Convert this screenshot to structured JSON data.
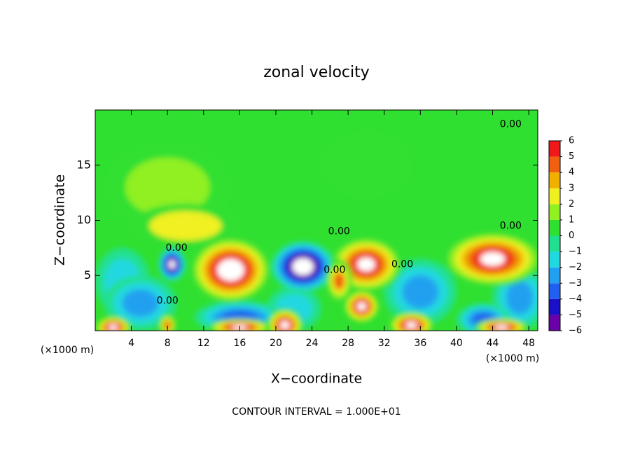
{
  "chart_data": {
    "type": "contour",
    "title": "zonal velocity",
    "xlabel": "X−coordinate",
    "ylabel": "Z−coordinate",
    "x_unit": "(×1000 m)",
    "footer": "CONTOUR INTERVAL = 1.000E+01",
    "xlim": [
      0,
      49
    ],
    "ylim": [
      0,
      20
    ],
    "xticks": [
      4,
      8,
      12,
      16,
      20,
      24,
      28,
      32,
      36,
      40,
      44,
      48
    ],
    "yticks": [
      5,
      10,
      15
    ],
    "background_value": 0.5,
    "colorbar_ticks": [
      {
        "value": -6,
        "label": "−6"
      },
      {
        "value": -5,
        "label": "−5"
      },
      {
        "value": -4,
        "label": "−4"
      },
      {
        "value": -3,
        "label": "−3"
      },
      {
        "value": -2,
        "label": "−2"
      },
      {
        "value": -1,
        "label": "−1"
      },
      0,
      1,
      2,
      3,
      4,
      5,
      6
    ],
    "colors": [
      "#6a00a8",
      "#1a10c8",
      "#2060f0",
      "#20a0f0",
      "#20d8e0",
      "#20e090",
      "#30e030",
      "#90f020",
      "#f0f020",
      "#f0b000",
      "#f06010",
      "#f01818"
    ],
    "out_of_range_color": "#ffffff",
    "field": [
      {
        "x": 8,
        "z": 13,
        "rx": 7,
        "rz": 4,
        "value": 1.5
      },
      {
        "x": 10,
        "z": 9.5,
        "rx": 6,
        "rz": 2,
        "value": 2
      },
      {
        "x": 30,
        "z": 15,
        "rx": 5,
        "rz": 3,
        "value": 0.2
      },
      {
        "x": 3,
        "z": 4.5,
        "rx": 3,
        "rz": 3,
        "value": -2
      },
      {
        "x": 5,
        "z": 2.5,
        "rx": 4,
        "rz": 2.5,
        "value": -3
      },
      {
        "x": 36,
        "z": 3.5,
        "rx": 4,
        "rz": 3,
        "value": -3
      },
      {
        "x": 47,
        "z": 3,
        "rx": 3,
        "rz": 3,
        "value": -3
      },
      {
        "x": 22,
        "z": 2,
        "rx": 3,
        "rz": 2,
        "value": -2
      },
      {
        "x": 16,
        "z": 1.2,
        "rx": 5,
        "rz": 1.5,
        "value": -4
      },
      {
        "x": 43,
        "z": 1,
        "rx": 3,
        "rz": 1.5,
        "value": -4
      },
      {
        "x": 15,
        "z": 5.5,
        "rx": 4.5,
        "rz": 3,
        "value": 8
      },
      {
        "x": 23,
        "z": 5.8,
        "rx": 3.5,
        "rz": 2.3,
        "value": -8
      },
      {
        "x": 8.5,
        "z": 6,
        "rx": 1.5,
        "rz": 1.5,
        "value": -7
      },
      {
        "x": 30,
        "z": 6,
        "rx": 4,
        "rz": 2.5,
        "value": 7
      },
      {
        "x": 44,
        "z": 6.5,
        "rx": 5.5,
        "rz": 2.5,
        "value": 7
      },
      {
        "x": 27,
        "z": 4.5,
        "rx": 1.5,
        "rz": 2,
        "value": 4
      },
      {
        "x": 29.5,
        "z": 2.2,
        "rx": 2,
        "rz": 1.5,
        "value": 7
      },
      {
        "x": 35,
        "z": 0.5,
        "rx": 2.5,
        "rz": 1.2,
        "value": 7
      },
      {
        "x": 8,
        "z": 0.5,
        "rx": 1,
        "rz": 1,
        "value": 4
      },
      {
        "x": 2,
        "z": 0.3,
        "rx": 2,
        "rz": 1,
        "value": 7
      },
      {
        "x": 21,
        "z": 0.5,
        "rx": 2,
        "rz": 1.5,
        "value": 7
      },
      {
        "x": 16,
        "z": 0.3,
        "rx": 3.5,
        "rz": 0.8,
        "value": 7
      },
      {
        "x": 45,
        "z": 0.3,
        "rx": 3,
        "rz": 0.8,
        "value": 7
      }
    ],
    "contour_labels": [
      {
        "text": "0.00",
        "x": 46,
        "z": 18.7
      },
      {
        "text": "0.00",
        "x": 27,
        "z": 9
      },
      {
        "text": "0.00",
        "x": 9,
        "z": 7.5
      },
      {
        "text": "0.00",
        "x": 26.5,
        "z": 5.5
      },
      {
        "text": "0.00",
        "x": 34,
        "z": 6
      },
      {
        "text": "0.00",
        "x": 8,
        "z": 2.7
      },
      {
        "text": "0.00",
        "x": 46,
        "z": 9.5
      }
    ]
  }
}
